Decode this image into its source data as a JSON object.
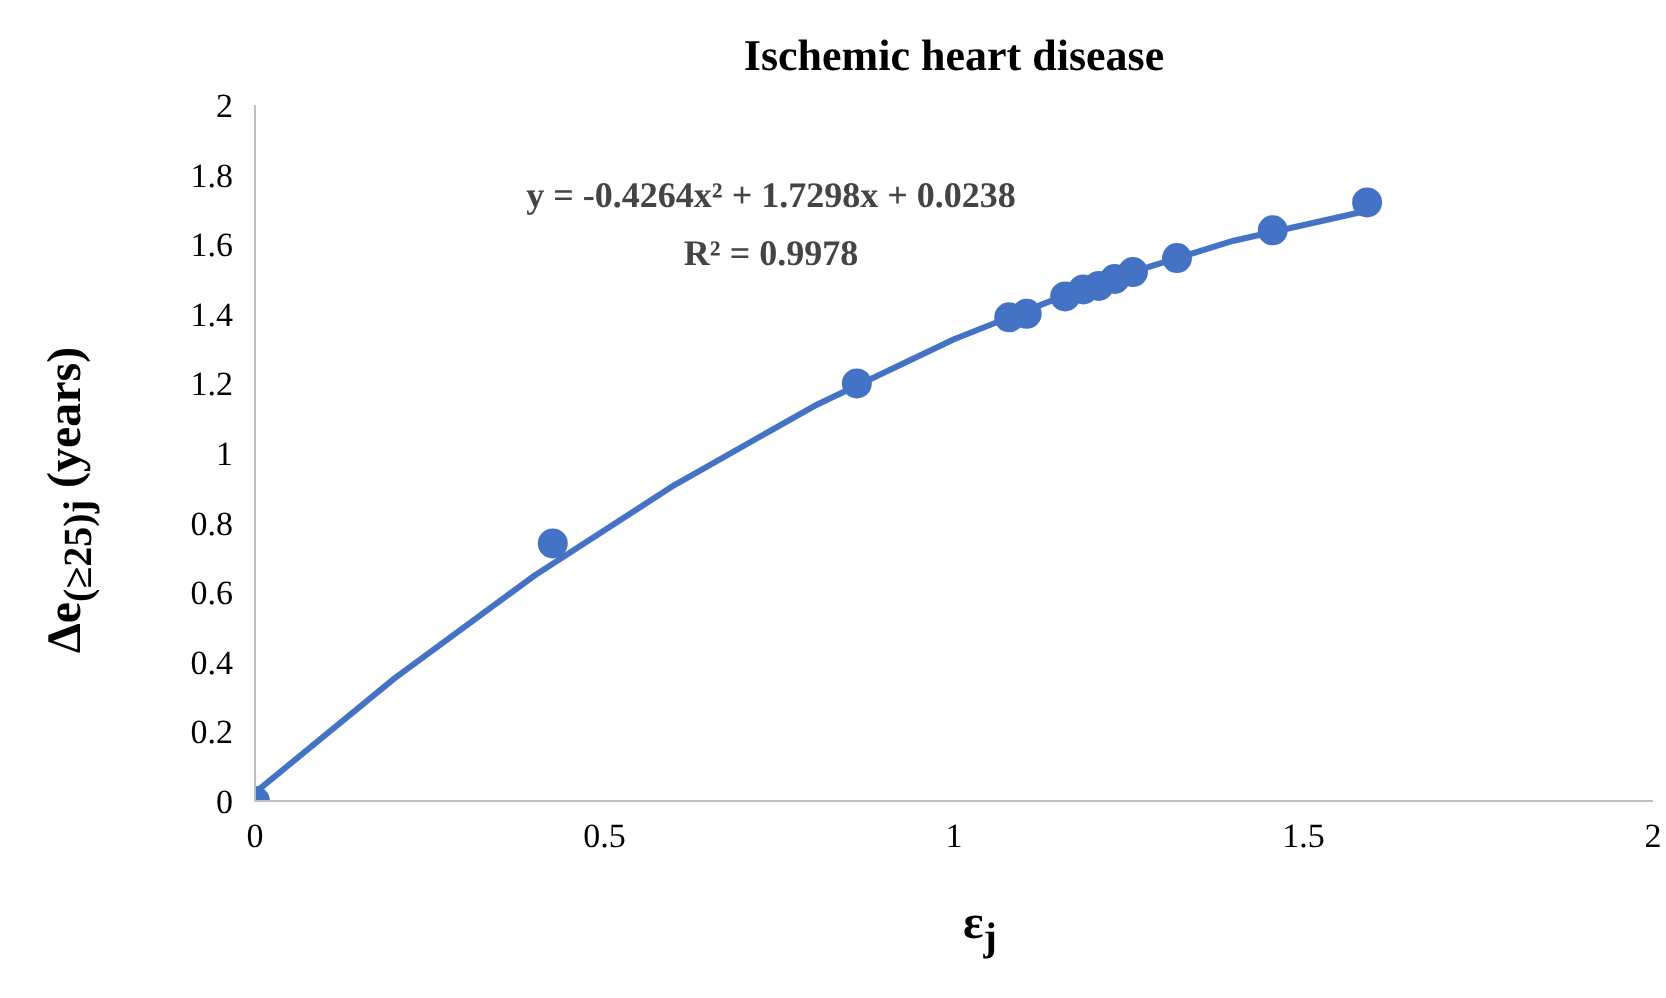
{
  "chart_data": {
    "type": "scatter",
    "title": "Ischemic heart disease",
    "xlabel": "ε$_{j}$",
    "ylabel": "Δe$_{(≥25)j}$ (years)",
    "x": [
      0,
      0.426,
      0.861,
      1.079,
      1.104,
      1.159,
      1.185,
      1.207,
      1.23,
      1.256,
      1.319,
      1.456,
      1.591
    ],
    "series": [
      {
        "color": "#4472c4",
        "marker": "circle",
        "values": [
          0,
          0.74,
          1.2,
          1.39,
          1.4,
          1.45,
          1.47,
          1.48,
          1.5,
          1.52,
          1.56,
          1.64,
          1.72
        ]
      },
      {
        "type": "line",
        "color": "#4472c4",
        "line_style": "solid",
        "x": [
          0,
          0.2,
          0.4,
          0.6,
          0.8,
          1.0,
          1.2,
          1.4,
          1.591
        ],
        "values": [
          0.024,
          0.353,
          0.648,
          0.908,
          1.135,
          1.327,
          1.486,
          1.61,
          1.696
        ]
      }
    ],
    "annotations": [
      "y = -0.4264x² + 1.7298x + 0.0238",
      "R² = 0.9978"
    ],
    "grid": false,
    "xlim": [
      0,
      2
    ],
    "xticks": [
      0,
      0.5,
      1,
      1.5,
      2
    ],
    "ylim": [
      0,
      2
    ],
    "yticks": [
      0,
      0.2,
      0.4,
      0.6,
      0.8,
      1,
      1.2,
      1.4,
      1.6,
      1.8,
      2
    ]
  }
}
